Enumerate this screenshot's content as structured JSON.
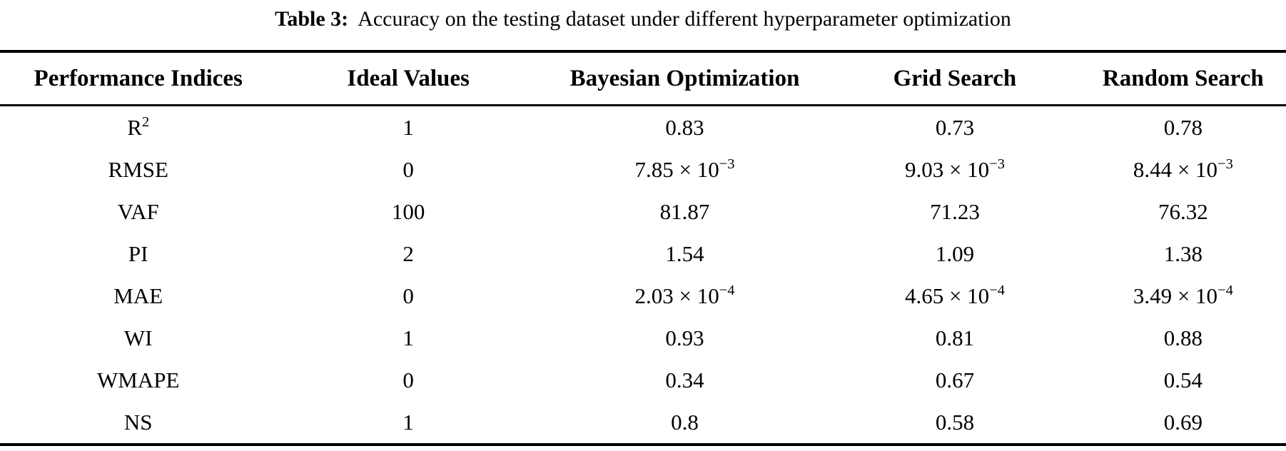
{
  "caption": {
    "label": "Table 3:",
    "text": "Accuracy on the testing dataset under different hyperparameter optimization"
  },
  "table": {
    "columns": [
      "Performance Indices",
      "Ideal Values",
      "Bayesian Optimization",
      "Grid Search",
      "Random Search"
    ],
    "rows": [
      {
        "cells": [
          {
            "t": "R",
            "sup": "2"
          },
          {
            "t": "1"
          },
          {
            "t": "0.83"
          },
          {
            "t": "0.73"
          },
          {
            "t": "0.78"
          }
        ]
      },
      {
        "cells": [
          {
            "t": "RMSE"
          },
          {
            "t": "0"
          },
          {
            "t": "7.85",
            "exp": "−3"
          },
          {
            "t": "9.03",
            "exp": "−3"
          },
          {
            "t": "8.44",
            "exp": "−3"
          }
        ]
      },
      {
        "cells": [
          {
            "t": "VAF"
          },
          {
            "t": "100"
          },
          {
            "t": "81.87"
          },
          {
            "t": "71.23"
          },
          {
            "t": "76.32"
          }
        ]
      },
      {
        "cells": [
          {
            "t": "PI"
          },
          {
            "t": "2"
          },
          {
            "t": "1.54"
          },
          {
            "t": "1.09"
          },
          {
            "t": "1.38"
          }
        ]
      },
      {
        "cells": [
          {
            "t": "MAE"
          },
          {
            "t": "0"
          },
          {
            "t": "2.03",
            "exp": "−4"
          },
          {
            "t": "4.65",
            "exp": "−4"
          },
          {
            "t": "3.49",
            "exp": "−4"
          }
        ]
      },
      {
        "cells": [
          {
            "t": "WI"
          },
          {
            "t": "1"
          },
          {
            "t": "0.93"
          },
          {
            "t": "0.81"
          },
          {
            "t": "0.88"
          }
        ]
      },
      {
        "cells": [
          {
            "t": "WMAPE"
          },
          {
            "t": "0"
          },
          {
            "t": "0.34"
          },
          {
            "t": "0.67"
          },
          {
            "t": "0.54"
          }
        ]
      },
      {
        "cells": [
          {
            "t": "NS"
          },
          {
            "t": "1"
          },
          {
            "t": "0.8"
          },
          {
            "t": "0.58"
          },
          {
            "t": "0.69"
          }
        ]
      }
    ]
  },
  "chart_data": {
    "type": "table",
    "title": "Table 3: Accuracy on the testing dataset under different hyperparameter optimization",
    "columns": [
      "Performance Indices",
      "Ideal Values",
      "Bayesian Optimization",
      "Grid Search",
      "Random Search"
    ],
    "rows": [
      [
        "R^2",
        "1",
        "0.83",
        "0.73",
        "0.78"
      ],
      [
        "RMSE",
        "0",
        "7.85 × 10^−3",
        "9.03 × 10^−3",
        "8.44 × 10^−3"
      ],
      [
        "VAF",
        "100",
        "81.87",
        "71.23",
        "76.32"
      ],
      [
        "PI",
        "2",
        "1.54",
        "1.09",
        "1.38"
      ],
      [
        "MAE",
        "0",
        "2.03 × 10^−4",
        "4.65 × 10^−4",
        "3.49 × 10^−4"
      ],
      [
        "WI",
        "1",
        "0.93",
        "0.81",
        "0.88"
      ],
      [
        "WMAPE",
        "0",
        "0.34",
        "0.67",
        "0.54"
      ],
      [
        "NS",
        "1",
        "0.8",
        "0.58",
        "0.69"
      ]
    ]
  },
  "colors": {
    "text": "#000000",
    "background": "#ffffff",
    "rule": "#000000"
  }
}
